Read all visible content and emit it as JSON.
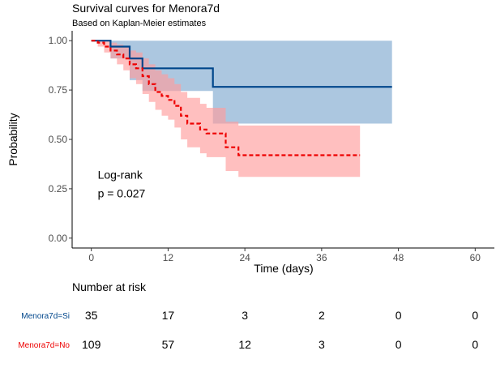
{
  "chart_data": {
    "type": "line",
    "subtype": "kaplan-meier",
    "title": "Survival curves for Menora7d",
    "subtitle": "Based on Kaplan-Meier estimates",
    "xlabel": "Time (days)",
    "ylabel": "Probability",
    "xlim": [
      -3,
      63
    ],
    "ylim": [
      -0.05,
      1.05
    ],
    "x_ticks": [
      0,
      12,
      24,
      36,
      48,
      60
    ],
    "x_tick_labels": [
      "0",
      "12",
      "24",
      "36",
      "48",
      "60"
    ],
    "y_ticks": [
      0,
      0.25,
      0.5,
      0.75,
      1.0
    ],
    "y_tick_labels": [
      "0.00",
      "0.25",
      "0.50",
      "0.75",
      "1.00"
    ],
    "grid": false,
    "annotation": {
      "line1": "Log-rank",
      "line2": "p = 0.027",
      "x": 1,
      "y": 0.3
    },
    "series": [
      {
        "name": "Menora7d=Si",
        "color": "#00468b",
        "band_color": "#7fa9cf",
        "linestyle": "solid",
        "steps": [
          [
            0,
            1.0
          ],
          [
            3,
            0.97
          ],
          [
            6,
            0.91
          ],
          [
            8,
            0.86
          ],
          [
            19,
            0.766
          ],
          [
            47,
            0.766
          ]
        ],
        "band": [
          [
            0,
            1.0,
            1.0
          ],
          [
            3,
            0.91,
            1.0
          ],
          [
            6,
            0.8,
            1.0
          ],
          [
            8,
            0.745,
            1.0
          ],
          [
            19,
            0.58,
            1.0
          ],
          [
            47,
            0.58,
            1.0
          ]
        ]
      },
      {
        "name": "Menora7d=No",
        "color": "#ed0000",
        "band_color": "#ff9c9c",
        "linestyle": "dashed",
        "steps": [
          [
            0,
            1.0
          ],
          [
            1,
            0.99
          ],
          [
            2,
            0.97
          ],
          [
            3,
            0.95
          ],
          [
            4,
            0.93
          ],
          [
            5,
            0.91
          ],
          [
            6,
            0.88
          ],
          [
            7,
            0.86
          ],
          [
            8,
            0.82
          ],
          [
            9,
            0.78
          ],
          [
            10,
            0.74
          ],
          [
            11,
            0.72
          ],
          [
            12,
            0.7
          ],
          [
            13,
            0.67
          ],
          [
            14,
            0.62
          ],
          [
            15,
            0.58
          ],
          [
            17,
            0.55
          ],
          [
            18,
            0.53
          ],
          [
            21,
            0.46
          ],
          [
            23,
            0.42
          ],
          [
            42,
            0.42
          ]
        ],
        "band": [
          [
            0,
            1.0,
            1.0
          ],
          [
            1,
            0.97,
            1.0
          ],
          [
            2,
            0.94,
            1.0
          ],
          [
            3,
            0.91,
            0.99
          ],
          [
            4,
            0.88,
            0.98
          ],
          [
            5,
            0.85,
            0.97
          ],
          [
            6,
            0.81,
            0.95
          ],
          [
            7,
            0.78,
            0.94
          ],
          [
            8,
            0.73,
            0.91
          ],
          [
            9,
            0.69,
            0.88
          ],
          [
            10,
            0.65,
            0.85
          ],
          [
            11,
            0.62,
            0.83
          ],
          [
            12,
            0.6,
            0.81
          ],
          [
            13,
            0.56,
            0.78
          ],
          [
            14,
            0.5,
            0.74
          ],
          [
            15,
            0.46,
            0.71
          ],
          [
            17,
            0.43,
            0.68
          ],
          [
            18,
            0.41,
            0.66
          ],
          [
            21,
            0.34,
            0.59
          ],
          [
            23,
            0.31,
            0.57
          ],
          [
            42,
            0.31,
            0.57
          ]
        ]
      }
    ],
    "risk_table": {
      "title": "Number at risk",
      "times": [
        0,
        12,
        24,
        36,
        48,
        60
      ],
      "rows": [
        {
          "label": "Menora7d=Si",
          "color": "#00468b",
          "values": [
            "35",
            "17",
            "3",
            "2",
            "0",
            "0"
          ]
        },
        {
          "label": "Menora7d=No",
          "color": "#ed0000",
          "values": [
            "109",
            "57",
            "12",
            "3",
            "0",
            "0"
          ]
        }
      ]
    }
  }
}
